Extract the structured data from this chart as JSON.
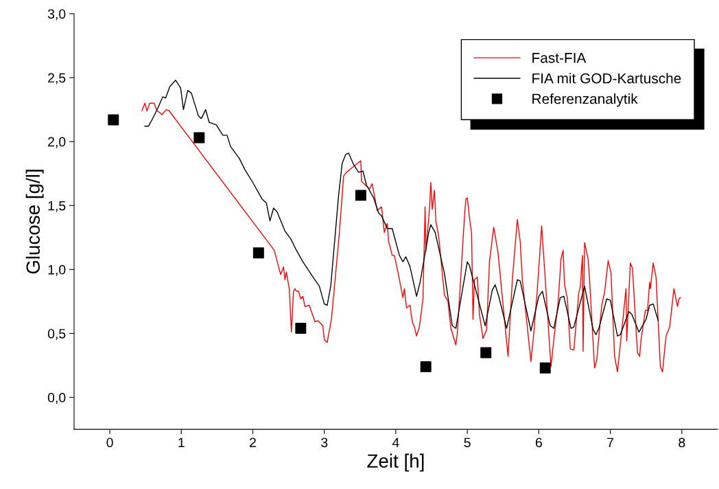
{
  "chart_data": {
    "type": "line",
    "xlabel": "Zeit [h]",
    "ylabel": "Glucose [g/l]",
    "xlim": [
      -0.5,
      8.5
    ],
    "xticks": [
      0,
      1,
      2,
      3,
      4,
      5,
      6,
      7,
      8
    ],
    "ylim": [
      -0.25,
      3.0
    ],
    "yticks": [
      {
        "value": 0,
        "label": "0,0"
      },
      {
        "value": 0.5,
        "label": "0,5"
      },
      {
        "value": 1.0,
        "label": "1,0"
      },
      {
        "value": 1.5,
        "label": "1,5"
      },
      {
        "value": 2.0,
        "label": "2,0"
      },
      {
        "value": 2.5,
        "label": "2,5"
      },
      {
        "value": 3.0,
        "label": "3,0"
      }
    ],
    "grid": false,
    "legend": "top right",
    "series": [
      {
        "name": "Fast-FIA",
        "color": "#ff0000",
        "marker": "none",
        "line_style": "solid",
        "x": [
          0.45,
          0.49,
          0.52,
          0.56,
          0.62,
          0.66,
          0.69,
          0.73,
          0.79,
          0.83,
          2.3,
          2.39,
          2.43,
          2.45,
          2.47,
          2.51,
          2.54,
          2.57,
          2.59,
          2.61,
          2.64,
          2.67,
          2.7,
          2.73,
          2.79,
          2.87,
          2.91,
          2.98,
          3.0,
          3.04,
          3.1,
          3.21,
          3.27,
          3.31,
          3.51,
          3.52,
          3.63,
          3.67,
          3.74,
          3.8,
          3.84,
          3.88,
          3.9,
          3.95,
          3.98,
          4.03,
          4.1,
          4.12,
          4.15,
          4.2,
          4.23,
          4.26,
          4.29,
          4.33,
          4.38,
          4.41,
          4.42,
          4.47,
          4.49,
          4.51,
          4.54,
          4.56,
          4.6,
          4.68,
          4.73,
          4.77,
          4.84,
          4.86,
          4.96,
          4.98,
          5.0,
          5.03,
          5.06,
          5.08,
          5.1,
          5.14,
          5.17,
          5.22,
          5.27,
          5.31,
          5.37,
          5.43,
          5.57,
          5.63,
          5.7,
          5.74,
          5.77,
          5.89,
          5.93,
          5.98,
          6.04,
          6.08,
          6.17,
          6.21,
          6.27,
          6.31,
          6.34,
          6.36,
          6.4,
          6.44,
          6.49,
          6.56,
          6.58,
          6.61,
          6.62,
          6.64,
          6.69,
          6.71,
          6.78,
          6.81,
          6.88,
          6.92,
          6.97,
          7.01,
          7.06,
          7.1,
          7.14,
          7.22,
          7.23,
          7.28,
          7.31,
          7.38,
          7.41,
          7.43,
          7.49,
          7.52,
          7.55,
          7.56,
          7.6,
          7.64,
          7.7,
          7.73,
          7.78,
          7.83,
          7.89,
          7.94,
          7.96,
          7.98
        ],
        "values": [
          2.24,
          2.3,
          2.24,
          2.3,
          2.3,
          2.24,
          2.23,
          2.21,
          2.25,
          2.24,
          1.15,
          0.96,
          1.02,
          0.92,
          0.98,
          0.85,
          0.51,
          0.83,
          0.85,
          0.83,
          0.83,
          0.77,
          0.79,
          0.71,
          0.72,
          0.59,
          0.6,
          0.56,
          0.45,
          0.43,
          0.61,
          1.28,
          1.73,
          1.76,
          1.85,
          1.69,
          1.63,
          1.67,
          1.46,
          1.49,
          1.29,
          1.36,
          1.22,
          1.11,
          1.11,
          0.98,
          0.78,
          0.85,
          0.7,
          0.72,
          0.59,
          0.55,
          0.48,
          0.55,
          0.77,
          1.49,
          1.14,
          1.46,
          1.68,
          1.47,
          1.62,
          1.38,
          1.26,
          0.8,
          0.75,
          0.54,
          0.41,
          0.5,
          1.41,
          1.55,
          1.56,
          1.41,
          1.28,
          0.61,
          0.92,
          0.94,
          0.65,
          0.46,
          0.53,
          1.06,
          1.33,
          1.13,
          0.32,
          0.92,
          1.39,
          1.22,
          0.92,
          0.28,
          0.5,
          0.85,
          1.34,
          1.01,
          0.24,
          0.45,
          0.74,
          1.08,
          1.15,
          0.88,
          0.77,
          0.38,
          0.37,
          0.82,
          0.86,
          1.11,
          0.36,
          1.21,
          1.08,
          0.92,
          0.23,
          0.29,
          0.72,
          0.82,
          1.07,
          0.97,
          0.32,
          0.2,
          0.41,
          0.85,
          0.44,
          1.05,
          1.01,
          0.35,
          0.32,
          0.45,
          0.68,
          0.68,
          0.9,
          0.85,
          1.05,
          0.94,
          0.24,
          0.2,
          0.48,
          0.55,
          0.85,
          0.71,
          0.77,
          0.78
        ]
      },
      {
        "name": "FIA mit GOD-Kartusche",
        "color": "#000000",
        "marker": "none",
        "line_style": "solid",
        "x": [
          0.49,
          0.54,
          0.59,
          0.67,
          0.74,
          0.78,
          0.84,
          0.92,
          0.99,
          1.03,
          1.09,
          1.14,
          1.24,
          1.28,
          1.34,
          1.39,
          1.49,
          1.58,
          1.64,
          1.69,
          1.81,
          1.89,
          2.0,
          2.13,
          2.19,
          2.24,
          2.29,
          2.34,
          2.45,
          2.53,
          2.61,
          2.7,
          2.83,
          2.93,
          3.0,
          3.04,
          3.09,
          3.2,
          3.25,
          3.3,
          3.34,
          3.41,
          3.48,
          3.54,
          3.59,
          3.69,
          3.76,
          3.8,
          3.88,
          3.95,
          4.05,
          4.1,
          4.14,
          4.2,
          4.29,
          4.34,
          4.46,
          4.49,
          4.55,
          4.68,
          4.79,
          4.84,
          5.0,
          5.03,
          5.25,
          5.35,
          5.39,
          5.44,
          5.55,
          5.7,
          5.74,
          5.89,
          6.0,
          6.05,
          6.16,
          6.21,
          6.3,
          6.35,
          6.45,
          6.49,
          6.64,
          6.76,
          6.8,
          6.84,
          6.95,
          7.0,
          7.1,
          7.14,
          7.26,
          7.3,
          7.4,
          7.5,
          7.55,
          7.6,
          7.67
        ],
        "values": [
          2.12,
          2.12,
          2.17,
          2.26,
          2.35,
          2.34,
          2.43,
          2.48,
          2.42,
          2.25,
          2.4,
          2.38,
          2.2,
          2.18,
          2.25,
          2.15,
          2.13,
          2.05,
          2.05,
          1.96,
          1.87,
          1.78,
          1.68,
          1.55,
          1.52,
          1.38,
          1.48,
          1.45,
          1.3,
          1.24,
          1.15,
          1.06,
          0.95,
          0.87,
          0.73,
          0.72,
          0.87,
          1.58,
          1.83,
          1.9,
          1.91,
          1.82,
          1.76,
          1.77,
          1.66,
          1.56,
          1.44,
          1.42,
          1.32,
          1.32,
          1.11,
          1.06,
          1.1,
          1.02,
          0.79,
          0.9,
          1.29,
          1.35,
          1.29,
          0.97,
          0.56,
          0.54,
          1.06,
          1.03,
          0.56,
          0.84,
          0.88,
          0.79,
          0.54,
          0.92,
          0.91,
          0.52,
          0.79,
          0.83,
          0.56,
          0.54,
          0.78,
          0.79,
          0.54,
          0.55,
          0.87,
          0.53,
          0.49,
          0.54,
          0.77,
          0.76,
          0.48,
          0.49,
          0.67,
          0.65,
          0.51,
          0.61,
          0.72,
          0.73,
          0.6
        ]
      },
      {
        "name": "Referenzanalytik",
        "type": "scatter",
        "color": "#000000",
        "marker": "square",
        "x": [
          0.05,
          1.25,
          2.08,
          2.67,
          3.51,
          4.42,
          5.26,
          6.09
        ],
        "values": [
          2.17,
          2.03,
          1.13,
          0.54,
          1.58,
          0.24,
          0.35,
          0.23
        ]
      }
    ]
  }
}
